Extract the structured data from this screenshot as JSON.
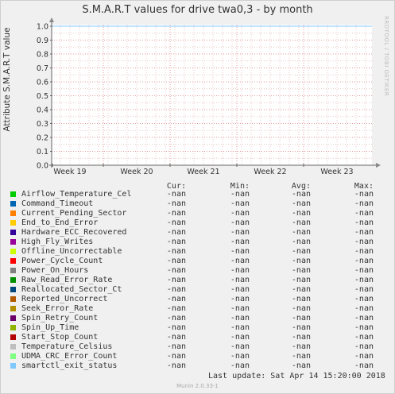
{
  "chart_data": {
    "type": "line",
    "title": "S.M.A.R.T values for drive twa0,3 - by month",
    "ylabel": "Attribute S.M.A.R.T value",
    "xlabel": "",
    "x_ticks": [
      "Week 19",
      "Week 20",
      "Week 21",
      "Week 22",
      "Week 23"
    ],
    "y_ticks": [
      "0.0",
      "0.1",
      "0.2",
      "0.3",
      "0.4",
      "0.5",
      "0.6",
      "0.7",
      "0.8",
      "0.9",
      "1.0"
    ],
    "ylim": [
      0.0,
      1.0
    ],
    "grid": true,
    "series_values": "no data (-nan)"
  },
  "watermark": "RRDTOOL / TOBI OETIKER",
  "legend": {
    "headers": {
      "cur": "Cur:",
      "min": "Min:",
      "avg": "Avg:",
      "max": "Max:"
    },
    "rows": [
      {
        "name": "Airflow_Temperature_Cel",
        "color": "#00cc00",
        "cur": "-nan",
        "min": "-nan",
        "avg": "-nan",
        "max": "-nan"
      },
      {
        "name": "Command_Timeout",
        "color": "#0066b3",
        "cur": "-nan",
        "min": "-nan",
        "avg": "-nan",
        "max": "-nan"
      },
      {
        "name": "Current_Pending_Sector",
        "color": "#ff8000",
        "cur": "-nan",
        "min": "-nan",
        "avg": "-nan",
        "max": "-nan"
      },
      {
        "name": "End_to_End_Error",
        "color": "#ffcc00",
        "cur": "-nan",
        "min": "-nan",
        "avg": "-nan",
        "max": "-nan"
      },
      {
        "name": "Hardware_ECC_Recovered",
        "color": "#330099",
        "cur": "-nan",
        "min": "-nan",
        "avg": "-nan",
        "max": "-nan"
      },
      {
        "name": "High_Fly_Writes",
        "color": "#990099",
        "cur": "-nan",
        "min": "-nan",
        "avg": "-nan",
        "max": "-nan"
      },
      {
        "name": "Offline_Uncorrectable",
        "color": "#ccff00",
        "cur": "-nan",
        "min": "-nan",
        "avg": "-nan",
        "max": "-nan"
      },
      {
        "name": "Power_Cycle_Count",
        "color": "#ff0000",
        "cur": "-nan",
        "min": "-nan",
        "avg": "-nan",
        "max": "-nan"
      },
      {
        "name": "Power_On_Hours",
        "color": "#808080",
        "cur": "-nan",
        "min": "-nan",
        "avg": "-nan",
        "max": "-nan"
      },
      {
        "name": "Raw_Read_Error_Rate",
        "color": "#008f00",
        "cur": "-nan",
        "min": "-nan",
        "avg": "-nan",
        "max": "-nan"
      },
      {
        "name": "Reallocated_Sector_Ct",
        "color": "#00487d",
        "cur": "-nan",
        "min": "-nan",
        "avg": "-nan",
        "max": "-nan"
      },
      {
        "name": "Reported_Uncorrect",
        "color": "#b35a00",
        "cur": "-nan",
        "min": "-nan",
        "avg": "-nan",
        "max": "-nan"
      },
      {
        "name": "Seek_Error_Rate",
        "color": "#b38f00",
        "cur": "-nan",
        "min": "-nan",
        "avg": "-nan",
        "max": "-nan"
      },
      {
        "name": "Spin_Retry_Count",
        "color": "#6b006b",
        "cur": "-nan",
        "min": "-nan",
        "avg": "-nan",
        "max": "-nan"
      },
      {
        "name": "Spin_Up_Time",
        "color": "#8fb300",
        "cur": "-nan",
        "min": "-nan",
        "avg": "-nan",
        "max": "-nan"
      },
      {
        "name": "Start_Stop_Count",
        "color": "#b30000",
        "cur": "-nan",
        "min": "-nan",
        "avg": "-nan",
        "max": "-nan"
      },
      {
        "name": "Temperature_Celsius",
        "color": "#bebebe",
        "cur": "-nan",
        "min": "-nan",
        "avg": "-nan",
        "max": "-nan"
      },
      {
        "name": "UDMA_CRC_Error_Count",
        "color": "#80ff80",
        "cur": "-nan",
        "min": "-nan",
        "avg": "-nan",
        "max": "-nan"
      },
      {
        "name": "smartctl_exit_status",
        "color": "#80c9ff",
        "cur": "-nan",
        "min": "-nan",
        "avg": "-nan",
        "max": "-nan"
      }
    ]
  },
  "last_update": {
    "label": "Last update:",
    "value": "Sat Apr 14 15:20:00 2018"
  },
  "footer": "Munin 2.0.33-1"
}
